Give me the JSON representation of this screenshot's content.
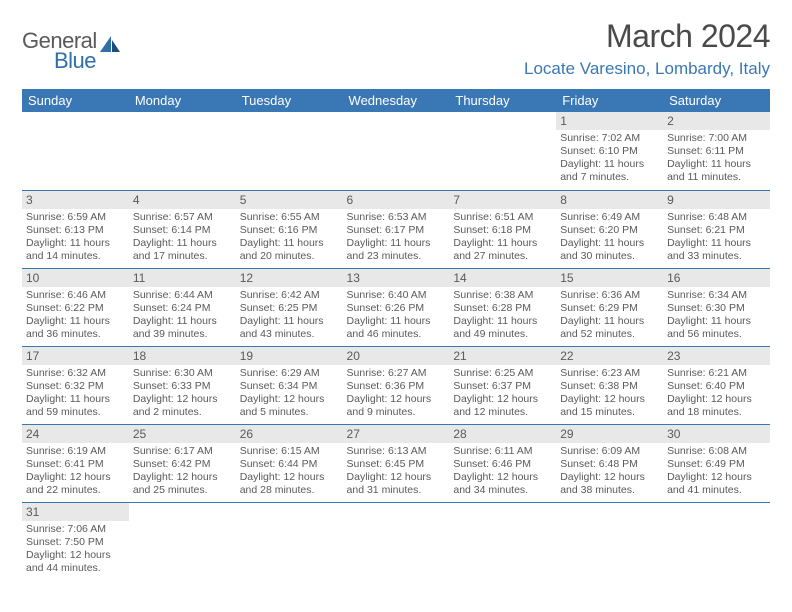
{
  "logo": {
    "text1": "General",
    "text2": "Blue"
  },
  "title": "March 2024",
  "location": "Locate Varesino, Lombardy, Italy",
  "colors": {
    "header_bg": "#3a78b5",
    "header_text": "#ffffff",
    "daynum_bg": "#e8e8e8",
    "border": "#3a78b5",
    "body_text": "#5a5a5a",
    "location_text": "#3a78b5"
  },
  "weekdays": [
    "Sunday",
    "Monday",
    "Tuesday",
    "Wednesday",
    "Thursday",
    "Friday",
    "Saturday"
  ],
  "weeks": [
    [
      null,
      null,
      null,
      null,
      null,
      {
        "n": "1",
        "sr": "Sunrise: 7:02 AM",
        "ss": "Sunset: 6:10 PM",
        "dl1": "Daylight: 11 hours",
        "dl2": "and 7 minutes."
      },
      {
        "n": "2",
        "sr": "Sunrise: 7:00 AM",
        "ss": "Sunset: 6:11 PM",
        "dl1": "Daylight: 11 hours",
        "dl2": "and 11 minutes."
      }
    ],
    [
      {
        "n": "3",
        "sr": "Sunrise: 6:59 AM",
        "ss": "Sunset: 6:13 PM",
        "dl1": "Daylight: 11 hours",
        "dl2": "and 14 minutes."
      },
      {
        "n": "4",
        "sr": "Sunrise: 6:57 AM",
        "ss": "Sunset: 6:14 PM",
        "dl1": "Daylight: 11 hours",
        "dl2": "and 17 minutes."
      },
      {
        "n": "5",
        "sr": "Sunrise: 6:55 AM",
        "ss": "Sunset: 6:16 PM",
        "dl1": "Daylight: 11 hours",
        "dl2": "and 20 minutes."
      },
      {
        "n": "6",
        "sr": "Sunrise: 6:53 AM",
        "ss": "Sunset: 6:17 PM",
        "dl1": "Daylight: 11 hours",
        "dl2": "and 23 minutes."
      },
      {
        "n": "7",
        "sr": "Sunrise: 6:51 AM",
        "ss": "Sunset: 6:18 PM",
        "dl1": "Daylight: 11 hours",
        "dl2": "and 27 minutes."
      },
      {
        "n": "8",
        "sr": "Sunrise: 6:49 AM",
        "ss": "Sunset: 6:20 PM",
        "dl1": "Daylight: 11 hours",
        "dl2": "and 30 minutes."
      },
      {
        "n": "9",
        "sr": "Sunrise: 6:48 AM",
        "ss": "Sunset: 6:21 PM",
        "dl1": "Daylight: 11 hours",
        "dl2": "and 33 minutes."
      }
    ],
    [
      {
        "n": "10",
        "sr": "Sunrise: 6:46 AM",
        "ss": "Sunset: 6:22 PM",
        "dl1": "Daylight: 11 hours",
        "dl2": "and 36 minutes."
      },
      {
        "n": "11",
        "sr": "Sunrise: 6:44 AM",
        "ss": "Sunset: 6:24 PM",
        "dl1": "Daylight: 11 hours",
        "dl2": "and 39 minutes."
      },
      {
        "n": "12",
        "sr": "Sunrise: 6:42 AM",
        "ss": "Sunset: 6:25 PM",
        "dl1": "Daylight: 11 hours",
        "dl2": "and 43 minutes."
      },
      {
        "n": "13",
        "sr": "Sunrise: 6:40 AM",
        "ss": "Sunset: 6:26 PM",
        "dl1": "Daylight: 11 hours",
        "dl2": "and 46 minutes."
      },
      {
        "n": "14",
        "sr": "Sunrise: 6:38 AM",
        "ss": "Sunset: 6:28 PM",
        "dl1": "Daylight: 11 hours",
        "dl2": "and 49 minutes."
      },
      {
        "n": "15",
        "sr": "Sunrise: 6:36 AM",
        "ss": "Sunset: 6:29 PM",
        "dl1": "Daylight: 11 hours",
        "dl2": "and 52 minutes."
      },
      {
        "n": "16",
        "sr": "Sunrise: 6:34 AM",
        "ss": "Sunset: 6:30 PM",
        "dl1": "Daylight: 11 hours",
        "dl2": "and 56 minutes."
      }
    ],
    [
      {
        "n": "17",
        "sr": "Sunrise: 6:32 AM",
        "ss": "Sunset: 6:32 PM",
        "dl1": "Daylight: 11 hours",
        "dl2": "and 59 minutes."
      },
      {
        "n": "18",
        "sr": "Sunrise: 6:30 AM",
        "ss": "Sunset: 6:33 PM",
        "dl1": "Daylight: 12 hours",
        "dl2": "and 2 minutes."
      },
      {
        "n": "19",
        "sr": "Sunrise: 6:29 AM",
        "ss": "Sunset: 6:34 PM",
        "dl1": "Daylight: 12 hours",
        "dl2": "and 5 minutes."
      },
      {
        "n": "20",
        "sr": "Sunrise: 6:27 AM",
        "ss": "Sunset: 6:36 PM",
        "dl1": "Daylight: 12 hours",
        "dl2": "and 9 minutes."
      },
      {
        "n": "21",
        "sr": "Sunrise: 6:25 AM",
        "ss": "Sunset: 6:37 PM",
        "dl1": "Daylight: 12 hours",
        "dl2": "and 12 minutes."
      },
      {
        "n": "22",
        "sr": "Sunrise: 6:23 AM",
        "ss": "Sunset: 6:38 PM",
        "dl1": "Daylight: 12 hours",
        "dl2": "and 15 minutes."
      },
      {
        "n": "23",
        "sr": "Sunrise: 6:21 AM",
        "ss": "Sunset: 6:40 PM",
        "dl1": "Daylight: 12 hours",
        "dl2": "and 18 minutes."
      }
    ],
    [
      {
        "n": "24",
        "sr": "Sunrise: 6:19 AM",
        "ss": "Sunset: 6:41 PM",
        "dl1": "Daylight: 12 hours",
        "dl2": "and 22 minutes."
      },
      {
        "n": "25",
        "sr": "Sunrise: 6:17 AM",
        "ss": "Sunset: 6:42 PM",
        "dl1": "Daylight: 12 hours",
        "dl2": "and 25 minutes."
      },
      {
        "n": "26",
        "sr": "Sunrise: 6:15 AM",
        "ss": "Sunset: 6:44 PM",
        "dl1": "Daylight: 12 hours",
        "dl2": "and 28 minutes."
      },
      {
        "n": "27",
        "sr": "Sunrise: 6:13 AM",
        "ss": "Sunset: 6:45 PM",
        "dl1": "Daylight: 12 hours",
        "dl2": "and 31 minutes."
      },
      {
        "n": "28",
        "sr": "Sunrise: 6:11 AM",
        "ss": "Sunset: 6:46 PM",
        "dl1": "Daylight: 12 hours",
        "dl2": "and 34 minutes."
      },
      {
        "n": "29",
        "sr": "Sunrise: 6:09 AM",
        "ss": "Sunset: 6:48 PM",
        "dl1": "Daylight: 12 hours",
        "dl2": "and 38 minutes."
      },
      {
        "n": "30",
        "sr": "Sunrise: 6:08 AM",
        "ss": "Sunset: 6:49 PM",
        "dl1": "Daylight: 12 hours",
        "dl2": "and 41 minutes."
      }
    ],
    [
      {
        "n": "31",
        "sr": "Sunrise: 7:06 AM",
        "ss": "Sunset: 7:50 PM",
        "dl1": "Daylight: 12 hours",
        "dl2": "and 44 minutes."
      },
      null,
      null,
      null,
      null,
      null,
      null
    ]
  ]
}
